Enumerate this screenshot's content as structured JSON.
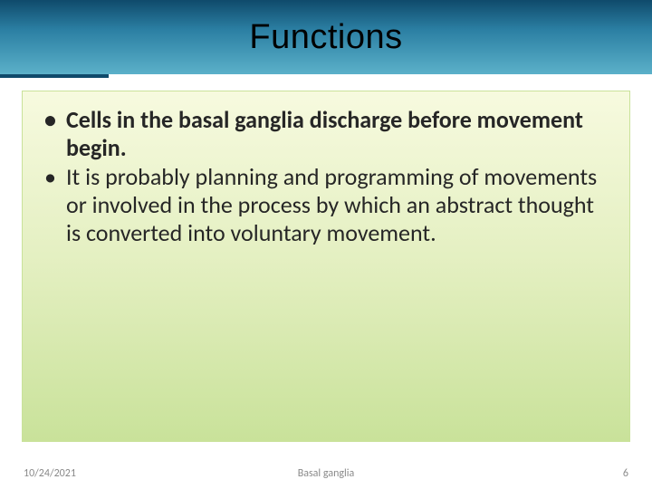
{
  "slide": {
    "title": "Functions",
    "title_fontsize": 38,
    "title_color": "#000000",
    "titlebar_gradient": [
      "#0f4a6b",
      "#2b7fa3",
      "#5bb0c9"
    ],
    "content_gradient": [
      "#f7fadf",
      "#e3efc0",
      "#c9e29a"
    ],
    "bullets": [
      {
        "text": "Cells in the basal ganglia discharge before movement begin.",
        "bold": true
      },
      {
        "text": "It is probably planning and programming of movements or involved in the process by which an abstract thought is converted into voluntary movement.",
        "bold": false
      }
    ],
    "bullet_fontsize": 26,
    "bullet_color": "#262626"
  },
  "footer": {
    "date": "10/24/2021",
    "center": "Basal ganglia",
    "page": "6",
    "fontsize": 12,
    "color": "#8a8a8a"
  }
}
